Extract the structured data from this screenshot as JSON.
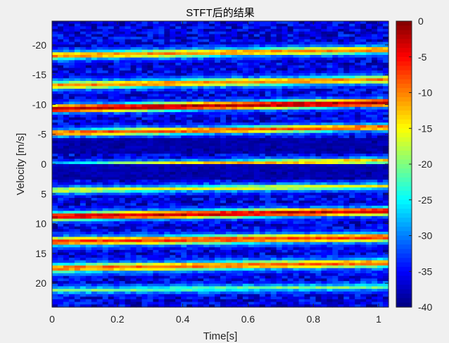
{
  "chart_data": {
    "type": "heatmap",
    "title": "STFT后的结果",
    "xlabel": "Time[s]",
    "ylabel": "Velocity [m/s]",
    "xlim": [
      0,
      1.03
    ],
    "ylim": [
      -24,
      24
    ],
    "y_reversed": true,
    "x_ticks": [
      0,
      0.2,
      0.4,
      0.6,
      0.8,
      1
    ],
    "x_tick_labels": [
      "0",
      "0.2",
      "0.4",
      "0.6",
      "0.8",
      "1"
    ],
    "y_ticks": [
      -20,
      -15,
      -10,
      -5,
      0,
      5,
      10,
      15,
      20
    ],
    "y_tick_labels": [
      "-20",
      "-15",
      "-10",
      "-5",
      "0",
      "5",
      "10",
      "15",
      "20"
    ],
    "colorbar": {
      "colormap": "jet",
      "clim": [
        -40,
        0
      ],
      "ticks": [
        0,
        -5,
        -10,
        -15,
        -20,
        -25,
        -30,
        -35,
        -40
      ],
      "tick_labels": [
        "0",
        "-5",
        "-10",
        "-15",
        "-20",
        "-25",
        "-30",
        "-35",
        "-40"
      ]
    },
    "background_level_db": -36,
    "bands": [
      {
        "velocity_start": -18.2,
        "velocity_end": -19.2,
        "peak_db": -10,
        "width": 0.45
      },
      {
        "velocity_start": -13.2,
        "velocity_end": -14.2,
        "peak_db": -10,
        "width": 0.45
      },
      {
        "velocity_start": -9.3,
        "velocity_end": -10.3,
        "peak_db": -2,
        "width": 0.45
      },
      {
        "velocity_start": -5.2,
        "velocity_end": -6.2,
        "peak_db": -8,
        "width": 0.4
      },
      {
        "velocity_start": 0.3,
        "velocity_end": -0.6,
        "peak_db": -12,
        "width": 0.35
      },
      {
        "velocity_start": 4.4,
        "velocity_end": 3.7,
        "peak_db": -15,
        "width": 0.35
      },
      {
        "velocity_start": 8.8,
        "velocity_end": 7.9,
        "peak_db": -3,
        "width": 0.45
      },
      {
        "velocity_start": 13.0,
        "velocity_end": 12.3,
        "peak_db": -7,
        "width": 0.5
      },
      {
        "velocity_start": 17.5,
        "velocity_end": 16.6,
        "peak_db": -9,
        "width": 0.5
      },
      {
        "velocity_start": 21.2,
        "velocity_end": 20.6,
        "peak_db": -20,
        "width": 0.35
      }
    ],
    "dark_regions": [
      {
        "velocity_center": -3.0,
        "width": 1.4
      },
      {
        "velocity_center": 1.2,
        "width": 1.4
      }
    ]
  }
}
